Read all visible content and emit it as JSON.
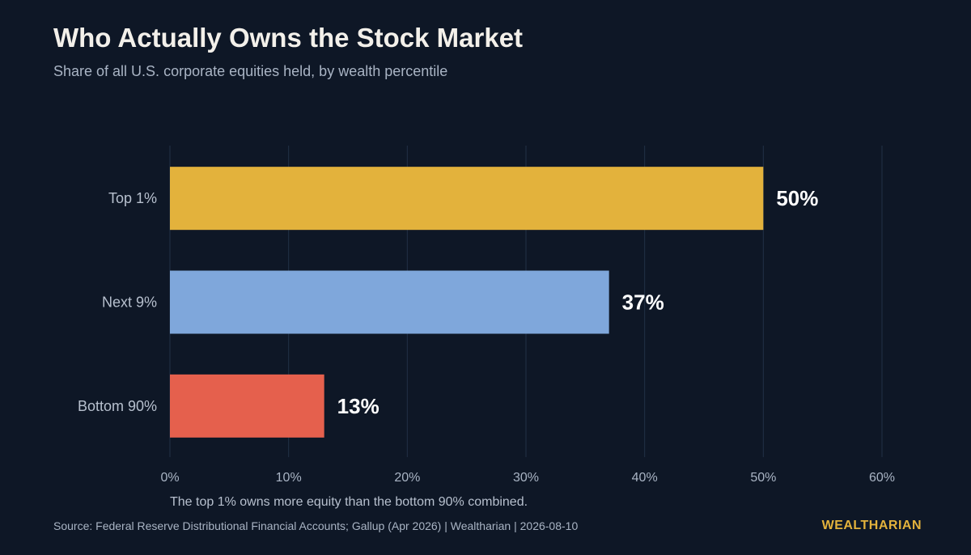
{
  "header": {
    "title": "Who Actually Owns the Stock Market",
    "subtitle": "Share of all U.S. corporate equities held, by wealth percentile"
  },
  "chart_data": {
    "type": "bar",
    "orientation": "horizontal",
    "categories": [
      "Top 1%",
      "Next 9%",
      "Bottom 90%"
    ],
    "values": [
      50,
      37,
      13
    ],
    "data_labels": [
      "50%",
      "37%",
      "13%"
    ],
    "colors": [
      "#e3b23c",
      "#7fa7db",
      "#e5604d"
    ],
    "xlim": [
      0,
      60
    ],
    "x_ticks": [
      0,
      10,
      20,
      30,
      40,
      50,
      60
    ],
    "x_tick_labels": [
      "0%",
      "10%",
      "20%",
      "30%",
      "40%",
      "50%",
      "60%"
    ],
    "grid": true,
    "annotation": "The top 1% owns more equity than the bottom 90% combined."
  },
  "footer": {
    "source": "Source: Federal Reserve Distributional Financial Accounts; Gallup (Apr 2026)  |  Wealtharian  |  2026-08-10",
    "brand": "WEALTHARIAN"
  }
}
